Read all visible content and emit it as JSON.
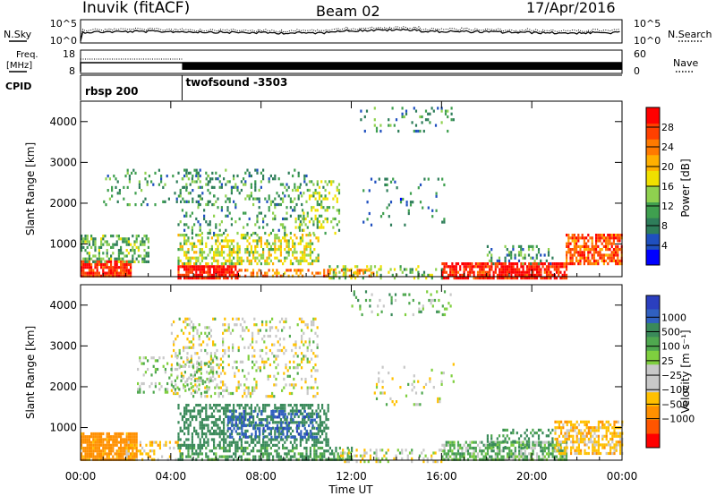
{
  "header": {
    "station": "Inuvik (fitACF)",
    "beam": "Beam 02",
    "date": "17/Apr/2016"
  },
  "summary_panels": {
    "nsky_label": "N.Sky",
    "nsearch_label": "N.Search",
    "nsky_ticks": [
      "10^5",
      "10^0"
    ],
    "freq_label_top": "Freq.",
    "freq_label_unit": "[MHz]",
    "freq_ticks": [
      "18",
      "8"
    ],
    "nave_label": "Nave",
    "nave_ticks": [
      "60",
      "0"
    ],
    "cpid_label": "CPID",
    "cpid_segments": [
      {
        "label": "rbsp 200",
        "start_hour": 0,
        "end_hour": 4.5
      },
      {
        "label": "twofsound -3503",
        "start_hour": 4.5,
        "end_hour": 24
      }
    ]
  },
  "colors": {
    "power_scale": [
      "#0000ff",
      "#1f4fbf",
      "#2e7d5a",
      "#3f9f4f",
      "#8fd14f",
      "#f0e000",
      "#ffb000",
      "#ff7a00",
      "#ff4000",
      "#ff0000"
    ],
    "velocity_scale": [
      "#2b3fbf",
      "#3060c0",
      "#3a8a5a",
      "#4fa84f",
      "#7fcf3f",
      "#c8c8c8",
      "#c8c8c8",
      "#ffc000",
      "#ff9000",
      "#ff5500",
      "#ff0000"
    ]
  },
  "chart_data": [
    {
      "type": "heatmap",
      "panel": "power",
      "x_tick_labels": [
        "00:00",
        "04:00",
        "08:00",
        "12:00",
        "16:00",
        "20:00",
        "00:00"
      ],
      "xlim_hours": [
        0,
        24
      ],
      "ylabel": "Slant Range [km]",
      "y_ticks": [
        1000,
        2000,
        3000,
        4000
      ],
      "ylim": [
        200,
        4500
      ],
      "colorbar_label": "Power [dB]",
      "colorbar_ticks": [
        4,
        8,
        12,
        16,
        20,
        24,
        28
      ],
      "colorbar_range": [
        0,
        32
      ],
      "scatter_regions": [
        {
          "h0": 0.0,
          "h1": 2.2,
          "r0": 250,
          "r1": 650,
          "level": 28,
          "density": 0.85
        },
        {
          "h0": 0.0,
          "h1": 3.0,
          "r0": 600,
          "r1": 1250,
          "level": 12,
          "density": 0.45
        },
        {
          "h0": 4.3,
          "h1": 7.0,
          "r0": 200,
          "r1": 550,
          "level": 30,
          "density": 0.85
        },
        {
          "h0": 4.3,
          "h1": 10.5,
          "r0": 550,
          "r1": 1300,
          "level": 16,
          "density": 0.5
        },
        {
          "h0": 4.3,
          "h1": 10.0,
          "r0": 1300,
          "r1": 2900,
          "level": 10,
          "density": 0.18
        },
        {
          "h0": 7.0,
          "h1": 13.0,
          "r0": 250,
          "r1": 450,
          "level": 24,
          "density": 0.45
        },
        {
          "h0": 1.0,
          "h1": 6.0,
          "r0": 2000,
          "r1": 2900,
          "level": 10,
          "density": 0.12
        },
        {
          "h0": 9.5,
          "h1": 11.5,
          "r0": 1300,
          "r1": 2600,
          "level": 14,
          "density": 0.25
        },
        {
          "h0": 12.3,
          "h1": 16.5,
          "r0": 3800,
          "r1": 4400,
          "level": 10,
          "density": 0.12
        },
        {
          "h0": 12.5,
          "h1": 16.3,
          "r0": 1500,
          "r1": 2700,
          "level": 8,
          "density": 0.08
        },
        {
          "h0": 16.0,
          "h1": 21.5,
          "r0": 200,
          "r1": 600,
          "level": 30,
          "density": 0.8
        },
        {
          "h0": 18.0,
          "h1": 21.0,
          "r0": 550,
          "r1": 1000,
          "level": 10,
          "density": 0.25
        },
        {
          "h0": 21.5,
          "h1": 24.0,
          "r0": 550,
          "r1": 1300,
          "level": 26,
          "density": 0.7
        },
        {
          "h0": 11.0,
          "h1": 16.0,
          "r0": 200,
          "r1": 500,
          "level": 14,
          "density": 0.25
        }
      ]
    },
    {
      "type": "heatmap",
      "panel": "velocity",
      "x_tick_labels": [
        "00:00",
        "04:00",
        "08:00",
        "12:00",
        "16:00",
        "20:00",
        "00:00"
      ],
      "xlim_hours": [
        0,
        24
      ],
      "xlabel": "Time UT",
      "ylabel": "Slant Range [km]",
      "y_ticks": [
        1000,
        2000,
        3000,
        4000
      ],
      "ylim": [
        200,
        4500
      ],
      "colorbar_label": "Velocity [m s⁻¹]",
      "colorbar_ticks": [
        "1000",
        "500",
        "100",
        "25",
        "−25",
        "−100",
        "−500",
        "−1000"
      ],
      "scatter_regions": [
        {
          "h0": 0.0,
          "h1": 2.5,
          "r0": 250,
          "r1": 900,
          "level": -150,
          "density": 0.85
        },
        {
          "h0": 2.0,
          "h1": 4.5,
          "r0": 250,
          "r1": 700,
          "level": -50,
          "density": 0.3
        },
        {
          "h0": 4.3,
          "h1": 11.0,
          "r0": 600,
          "r1": 1600,
          "level": 200,
          "density": 0.5
        },
        {
          "h0": 6.5,
          "h1": 10.5,
          "r0": 800,
          "r1": 1500,
          "level": 700,
          "density": 0.35
        },
        {
          "h0": 4.3,
          "h1": 12.0,
          "r0": 250,
          "r1": 600,
          "level": 100,
          "density": 0.55
        },
        {
          "h0": 4.0,
          "h1": 10.5,
          "r0": 1800,
          "r1": 3700,
          "level": 0,
          "density": 0.22
        },
        {
          "h0": 2.5,
          "h1": 6.0,
          "r0": 1900,
          "r1": 2800,
          "level": 40,
          "density": 0.18
        },
        {
          "h0": 12.0,
          "h1": 16.5,
          "r0": 3800,
          "r1": 4400,
          "level": 60,
          "density": 0.12
        },
        {
          "h0": 13.0,
          "h1": 16.5,
          "r0": 1600,
          "r1": 2600,
          "level": 0,
          "density": 0.08
        },
        {
          "h0": 16.0,
          "h1": 21.5,
          "r0": 250,
          "r1": 700,
          "level": 60,
          "density": 0.7
        },
        {
          "h0": 21.0,
          "h1": 24.0,
          "r0": 400,
          "r1": 1200,
          "level": -60,
          "density": 0.6
        },
        {
          "h0": 18.0,
          "h1": 21.0,
          "r0": 550,
          "r1": 1000,
          "level": 120,
          "density": 0.25
        },
        {
          "h0": 11.5,
          "h1": 16.0,
          "r0": 200,
          "r1": 500,
          "level": 0,
          "density": 0.3
        }
      ]
    }
  ]
}
